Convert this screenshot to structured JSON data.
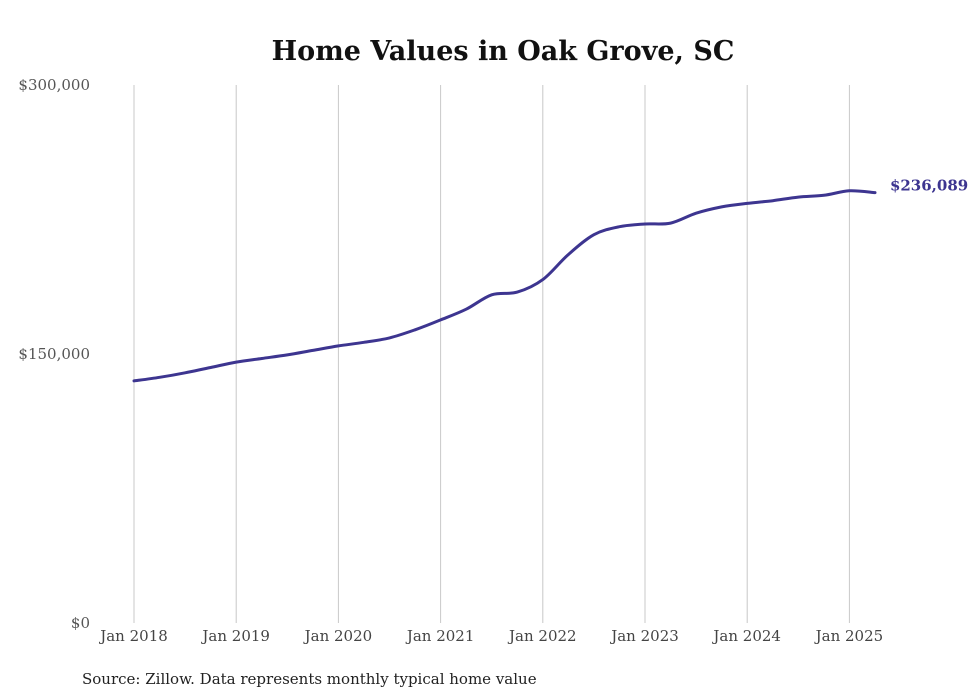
{
  "chart_data": {
    "type": "line",
    "title": "Home Values in Oak Grove, SC",
    "xlabel": "",
    "ylabel": "",
    "ylim": [
      0,
      300000
    ],
    "y_ticks": [
      {
        "value": 0,
        "label": "$0"
      },
      {
        "value": 150000,
        "label": "$150,000"
      },
      {
        "value": 300000,
        "label": "$300,000"
      }
    ],
    "x_ticks": [
      "Jan 2018",
      "Jan 2019",
      "Jan 2020",
      "Jan 2021",
      "Jan 2022",
      "Jan 2023",
      "Jan 2024",
      "Jan 2025"
    ],
    "grid": "vertical gridlines at each January",
    "legend": "none",
    "line_color": "#3d3590",
    "end_label": "$236,089",
    "series": [
      {
        "x": [
          "2018-01",
          "2018-04",
          "2018-07",
          "2018-10",
          "2019-01",
          "2019-04",
          "2019-07",
          "2019-10",
          "2020-01",
          "2020-04",
          "2020-07",
          "2020-10",
          "2021-01",
          "2021-04",
          "2021-07",
          "2021-10",
          "2022-01",
          "2022-04",
          "2022-07",
          "2022-10",
          "2023-01",
          "2023-04",
          "2023-07",
          "2023-10",
          "2024-01",
          "2024-04",
          "2024-07",
          "2024-10",
          "2025-01",
          "2025-04"
        ],
        "values": [
          135000,
          137000,
          139500,
          142500,
          145500,
          147500,
          149500,
          152000,
          154500,
          156500,
          159000,
          163500,
          169000,
          175000,
          183000,
          184500,
          191500,
          205500,
          216500,
          221000,
          222500,
          223000,
          228500,
          232000,
          234000,
          235500,
          237500,
          238500,
          241000,
          240000
        ]
      }
    ]
  },
  "footer": {
    "source": "Source: Zillow. Data represents monthly typical home value"
  }
}
